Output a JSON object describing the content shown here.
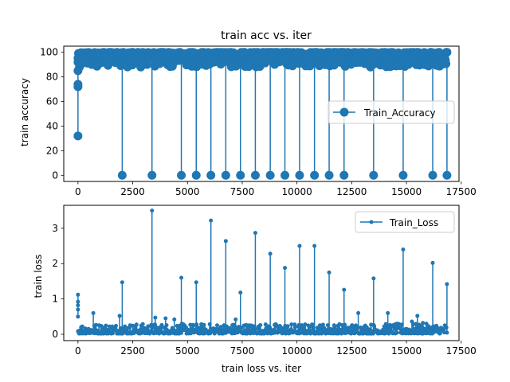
{
  "chart_data": [
    {
      "type": "line",
      "title": "train acc vs. iter",
      "xlabel": "",
      "ylabel": "train accuracy",
      "xlim": [
        -650,
        17400
      ],
      "ylim": [
        -5,
        105
      ],
      "xticks": [
        0,
        2500,
        5000,
        7500,
        10000,
        12500,
        15000,
        17500
      ],
      "yticks": [
        0,
        20,
        40,
        60,
        80,
        100
      ],
      "legend": "center-right",
      "color": "#1f77b4",
      "series": [
        {
          "name": "Train_Accuracy",
          "marker": "circle-large",
          "band": {
            "x_start": 0,
            "x_end": 16850,
            "y_low": 88,
            "y_high": 100
          },
          "start_points": [
            [
              0,
              32
            ],
            [
              0,
              72
            ],
            [
              0,
              74
            ],
            [
              0,
              85
            ],
            [
              0,
              92
            ]
          ],
          "drop_x": [
            2020,
            3380,
            4720,
            5400,
            6070,
            6750,
            7420,
            8100,
            8780,
            9450,
            10120,
            10800,
            11470,
            12150,
            13500,
            14850,
            16200,
            16850
          ],
          "drop_y": 0
        }
      ]
    },
    {
      "type": "line",
      "title": "",
      "xlabel": "train loss vs. iter",
      "ylabel": "train loss",
      "xlim": [
        -650,
        17400
      ],
      "ylim": [
        -0.18,
        3.65
      ],
      "xticks": [
        0,
        2500,
        5000,
        7500,
        10000,
        12500,
        15000,
        17500
      ],
      "yticks": [
        0,
        1,
        2,
        3
      ],
      "legend": "top-right",
      "color": "#1f77b4",
      "series": [
        {
          "name": "Train_Loss",
          "marker": "circle-small",
          "band": {
            "x_start": 0,
            "x_end": 16850,
            "y_low": 0.02,
            "y_high": 0.3
          },
          "start_points": [
            [
              0,
              1.12
            ],
            [
              0,
              0.92
            ],
            [
              0,
              0.82
            ],
            [
              0,
              0.7
            ],
            [
              0,
              0.5
            ]
          ],
          "spikes": [
            [
              700,
              0.6
            ],
            [
              1900,
              0.52
            ],
            [
              2020,
              1.47
            ],
            [
              3380,
              3.5
            ],
            [
              3530,
              0.47
            ],
            [
              4000,
              0.45
            ],
            [
              4400,
              0.42
            ],
            [
              4720,
              1.6
            ],
            [
              5400,
              1.47
            ],
            [
              6070,
              3.22
            ],
            [
              6750,
              2.64
            ],
            [
              7200,
              0.42
            ],
            [
              7420,
              1.18
            ],
            [
              8100,
              2.87
            ],
            [
              8780,
              2.28
            ],
            [
              9450,
              1.88
            ],
            [
              10120,
              2.5
            ],
            [
              10800,
              2.5
            ],
            [
              11470,
              1.75
            ],
            [
              12150,
              1.26
            ],
            [
              12800,
              0.6
            ],
            [
              13500,
              1.58
            ],
            [
              14150,
              0.6
            ],
            [
              14850,
              2.4
            ],
            [
              15250,
              0.36
            ],
            [
              15500,
              0.52
            ],
            [
              15750,
              0.32
            ],
            [
              16200,
              2.02
            ],
            [
              16850,
              1.42
            ]
          ]
        }
      ]
    }
  ]
}
